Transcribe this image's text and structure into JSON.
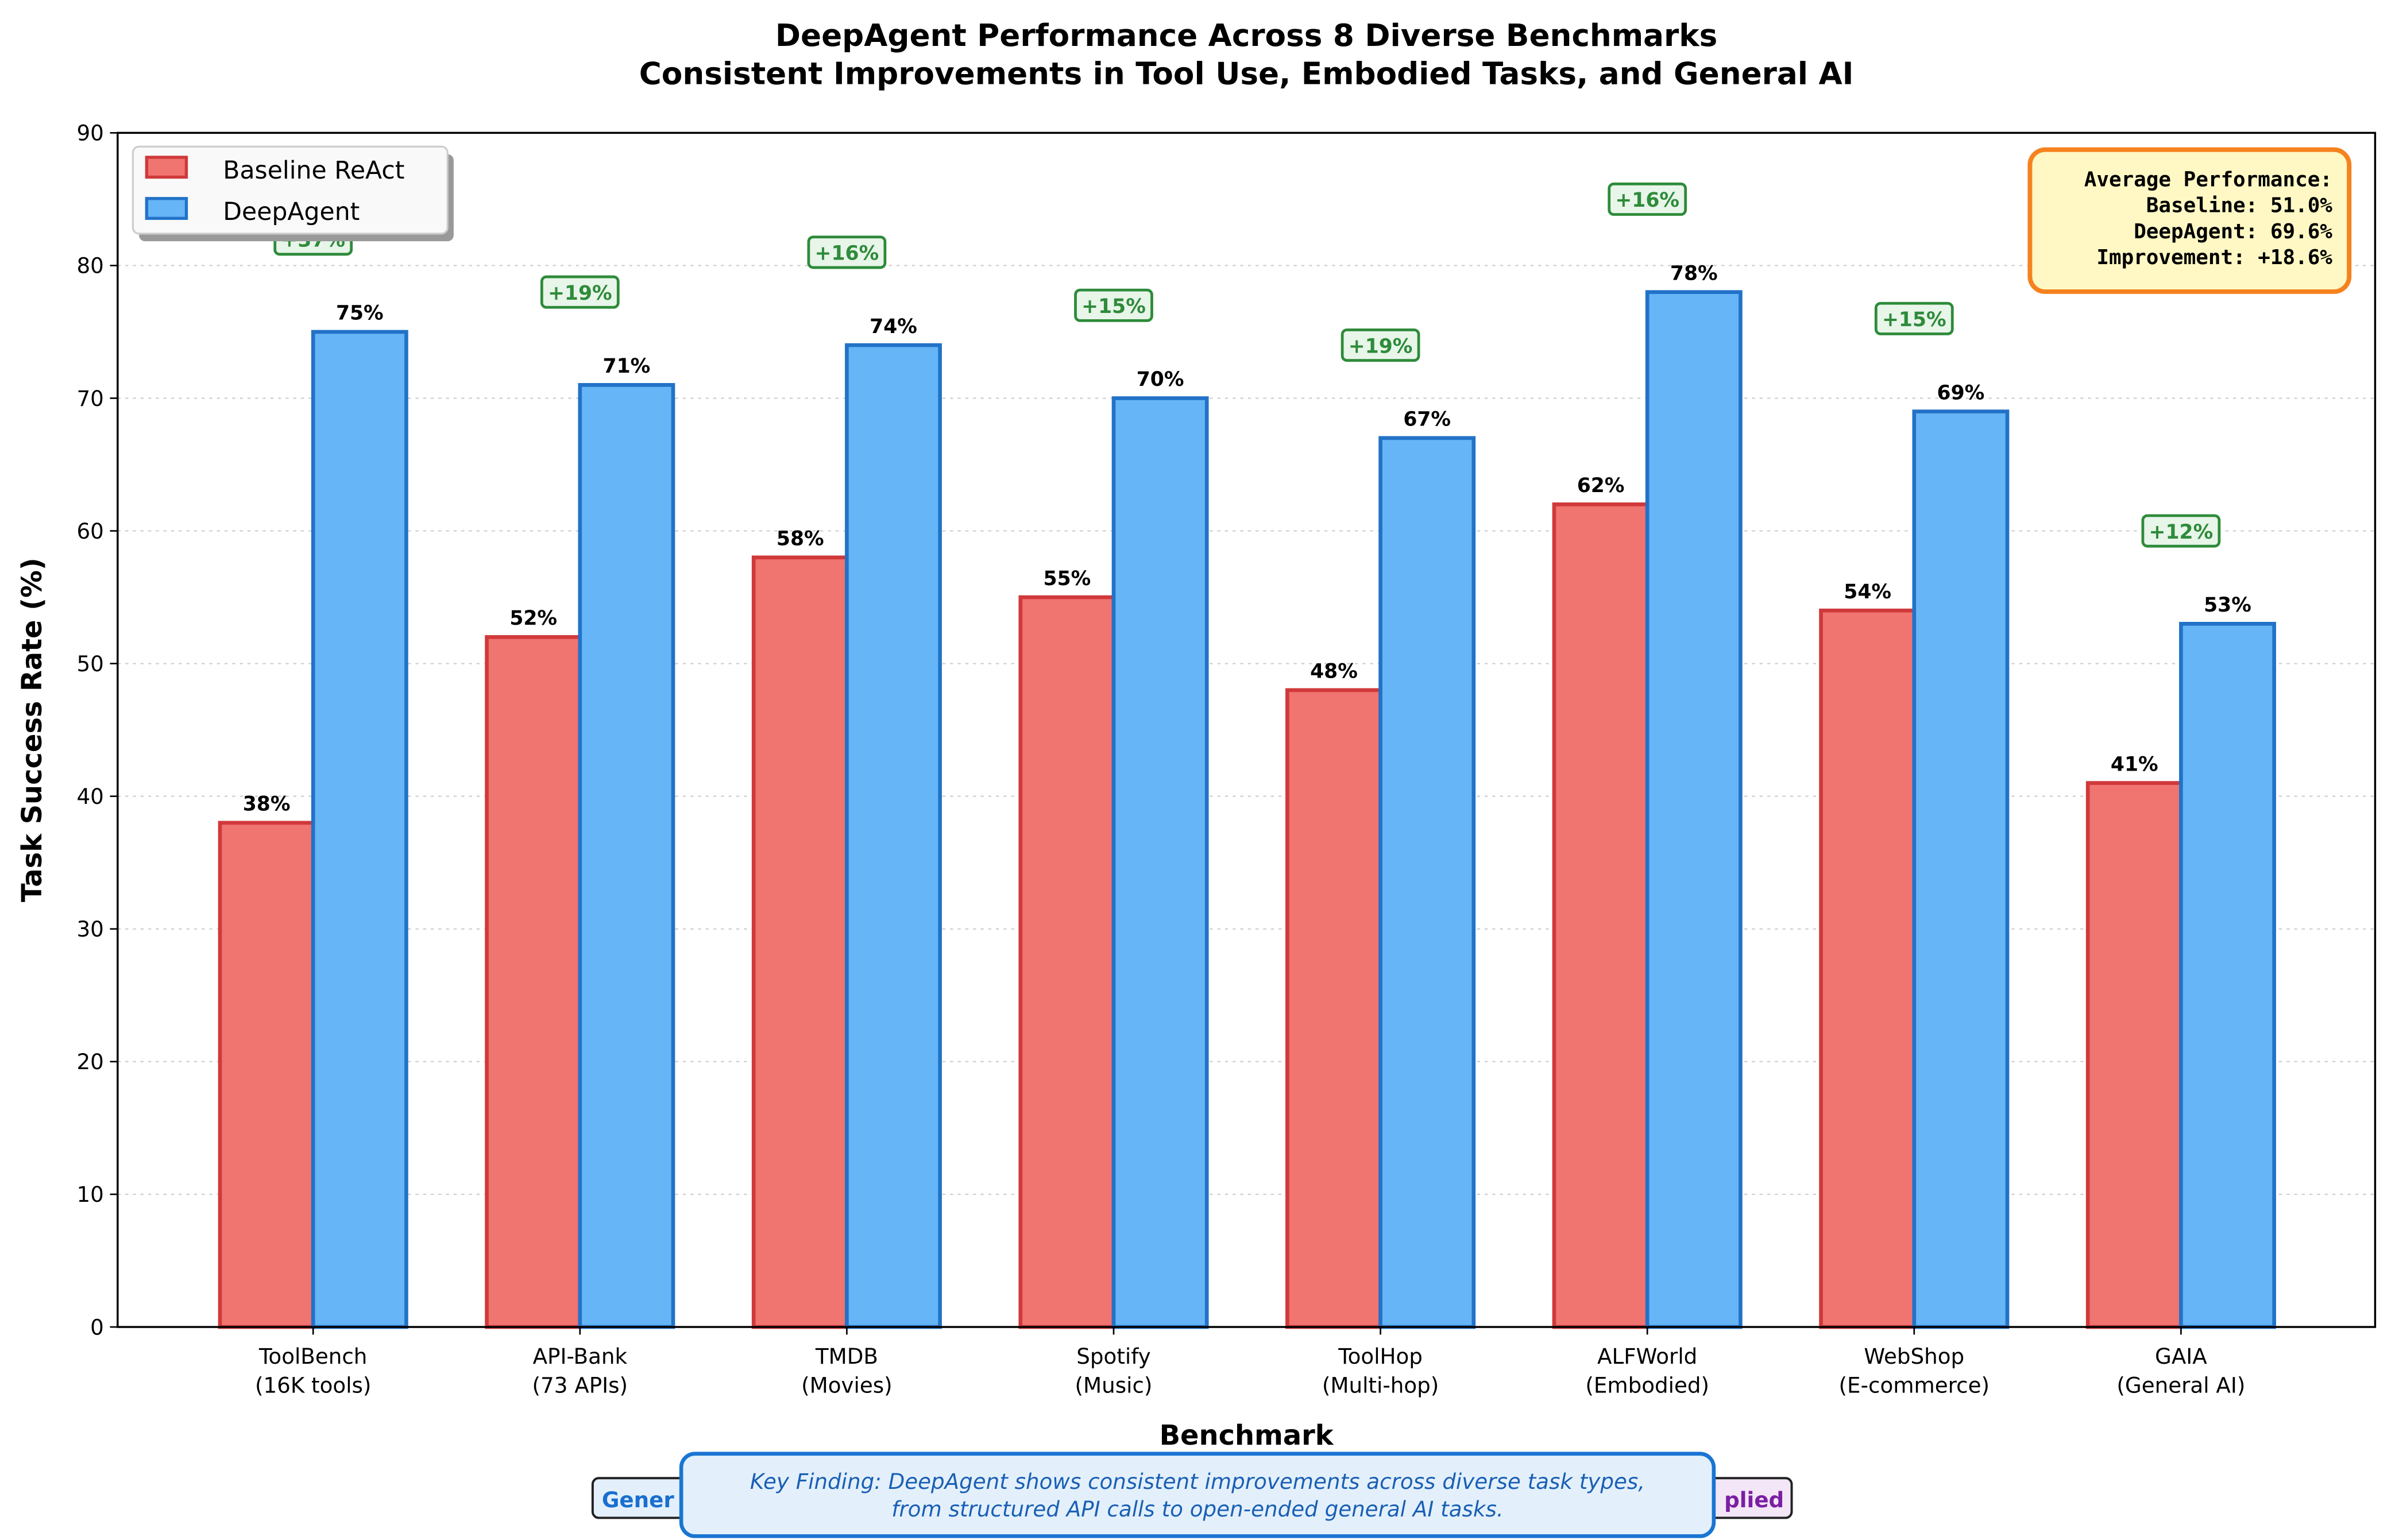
{
  "chart_data": {
    "type": "bar",
    "title": "DeepAgent Performance Across 8 Diverse Benchmarks",
    "subtitle": "Consistent Improvements in Tool Use, Embodied Tasks, and General AI",
    "xlabel": "Benchmark",
    "ylabel": "Task Success Rate (%)",
    "ylim": [
      0,
      90
    ],
    "yticks": [
      0,
      10,
      20,
      30,
      40,
      50,
      60,
      70,
      80,
      90
    ],
    "grid": "y-dotted",
    "legend_position": "top-left",
    "categories": [
      [
        "ToolBench",
        "(16K tools)"
      ],
      [
        "API-Bank",
        "(73 APIs)"
      ],
      [
        "TMDB",
        "(Movies)"
      ],
      [
        "Spotify",
        "(Music)"
      ],
      [
        "ToolHop",
        "(Multi-hop)"
      ],
      [
        "ALFWorld",
        "(Embodied)"
      ],
      [
        "WebShop",
        "(E-commerce)"
      ],
      [
        "GAIA",
        "(General AI)"
      ]
    ],
    "series": [
      {
        "name": "Baseline ReAct",
        "values": [
          38,
          52,
          58,
          55,
          48,
          62,
          54,
          41
        ],
        "color": "#f07470",
        "edge": "#d0393a"
      },
      {
        "name": "DeepAgent",
        "values": [
          75,
          71,
          74,
          70,
          67,
          78,
          69,
          53
        ],
        "color": "#66b5f6",
        "edge": "#2272c8"
      }
    ],
    "improvement_labels": [
      "+37%",
      "+19%",
      "+16%",
      "+15%",
      "+19%",
      "+16%",
      "+15%",
      "+12%"
    ],
    "summary_box": {
      "lines": [
        "Average Performance:",
        "Baseline: 51.0%",
        "DeepAgent: 69.6%",
        "Improvement: +18.6%"
      ]
    },
    "key_finding": {
      "lines": [
        "Key Finding: DeepAgent shows consistent improvements across diverse task types,",
        "from structured API calls to open-ended general AI tasks."
      ]
    },
    "partial_labels": {
      "left": "Gener",
      "right": "plied"
    }
  }
}
